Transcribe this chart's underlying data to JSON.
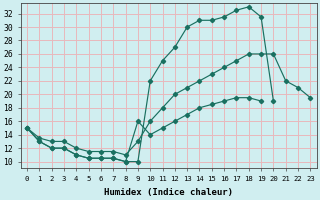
{
  "xlabel": "Humidex (Indice chaleur)",
  "xlim": [
    -0.5,
    23.5
  ],
  "ylim": [
    9,
    33.5
  ],
  "xticks": [
    0,
    1,
    2,
    3,
    4,
    5,
    6,
    7,
    8,
    9,
    10,
    11,
    12,
    13,
    14,
    15,
    16,
    17,
    18,
    19,
    20,
    21,
    22,
    23
  ],
  "yticks": [
    10,
    12,
    14,
    16,
    18,
    20,
    22,
    24,
    26,
    28,
    30,
    32
  ],
  "bg_color": "#d0eef0",
  "grid_color": "#e8b8bc",
  "line_color": "#1a7060",
  "line_max_x": [
    0,
    1,
    2,
    3,
    4,
    5,
    6,
    7,
    8,
    9,
    10,
    11,
    12,
    13,
    14,
    15,
    16,
    17,
    18,
    19,
    20
  ],
  "line_max_y": [
    15,
    13,
    12,
    12,
    11,
    10.5,
    10.5,
    10.5,
    10,
    10,
    22,
    25,
    27,
    30,
    31,
    31,
    31.5,
    32.5,
    33,
    31.5,
    19
  ],
  "line_mean_x": [
    0,
    1,
    2,
    3,
    4,
    5,
    6,
    7,
    8,
    9,
    10,
    11,
    12,
    13,
    14,
    15,
    16,
    17,
    18,
    19,
    20,
    21,
    22,
    23
  ],
  "line_mean_y": [
    15,
    13.5,
    13,
    13,
    12,
    11.5,
    11.5,
    11.5,
    11,
    13,
    16,
    18,
    20,
    21,
    22,
    23,
    24,
    25,
    26,
    26,
    26,
    22,
    21,
    19.5
  ],
  "line_min_x": [
    0,
    1,
    2,
    3,
    4,
    5,
    6,
    7,
    8,
    9,
    10,
    11,
    12,
    13,
    14,
    15,
    16,
    17,
    18,
    19
  ],
  "line_min_y": [
    15,
    13,
    12,
    12,
    11,
    10.5,
    10.5,
    10.5,
    10,
    16,
    14,
    15,
    16,
    17,
    18,
    18.5,
    19,
    19.5,
    19.5,
    19
  ]
}
